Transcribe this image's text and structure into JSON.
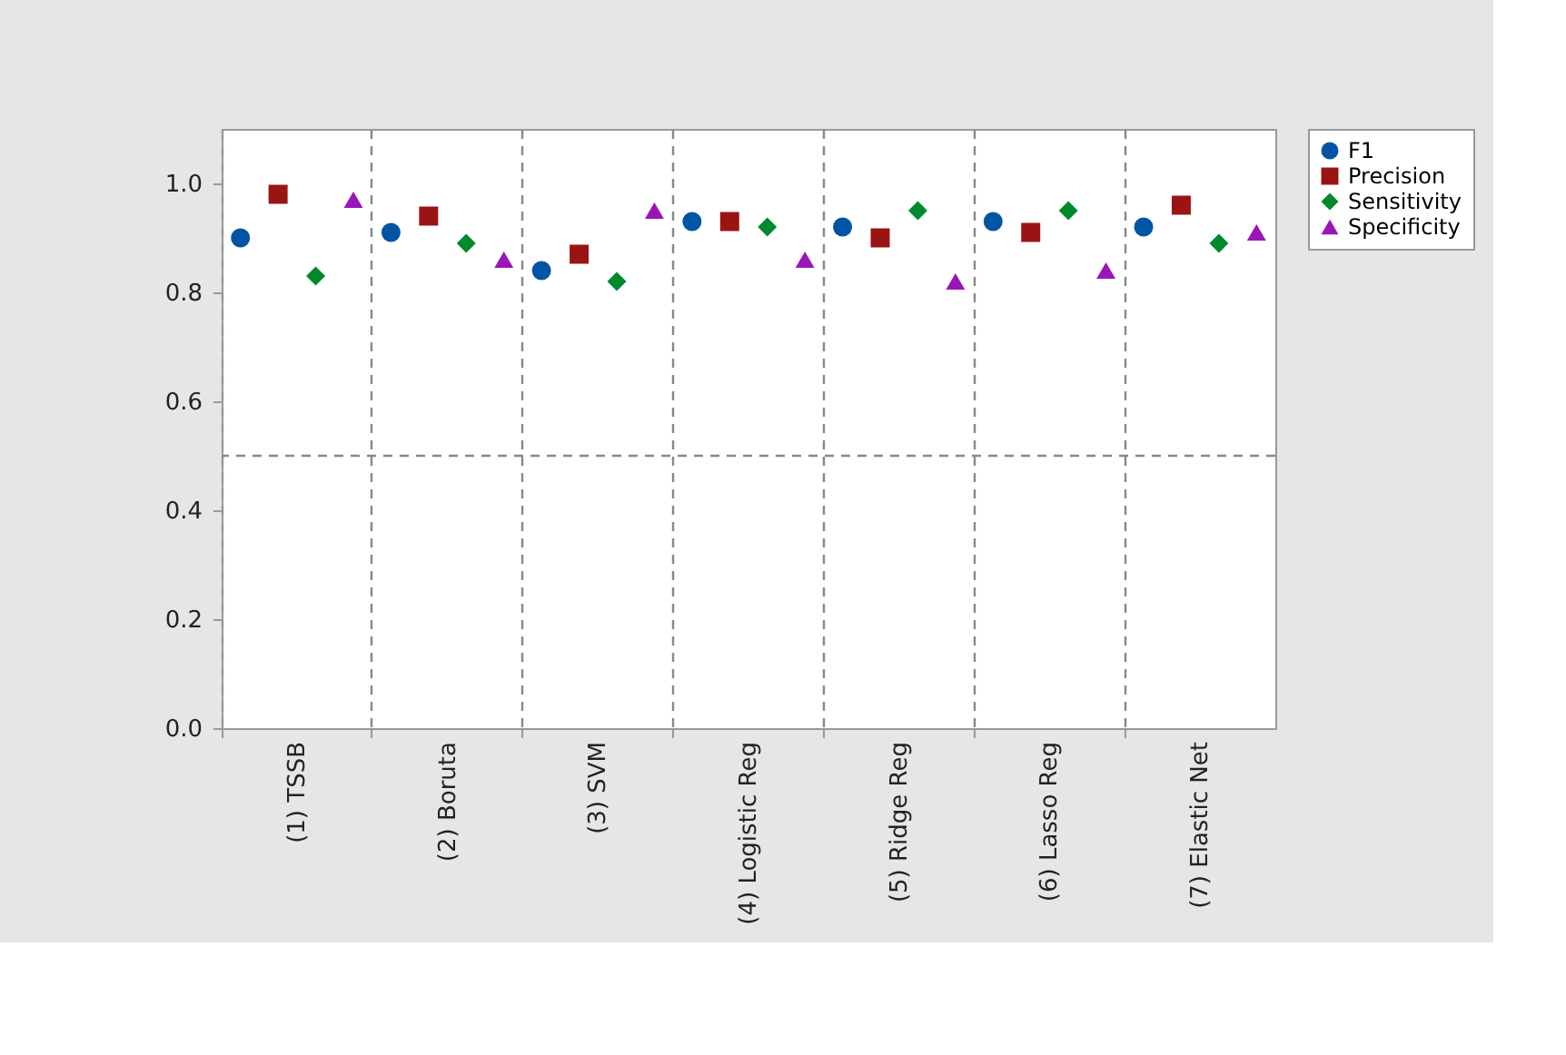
{
  "chart_data": {
    "type": "scatter",
    "categories": [
      "(1) TSSB",
      "(2) Boruta",
      "(3) SVM",
      "(4) Logistic Reg",
      "(5) Ridge Reg",
      "(6) Lasso Reg",
      "(7) Elastic Net"
    ],
    "series": [
      {
        "name": "F1",
        "color": "#0054a6",
        "marker": "circle",
        "values": [
          0.9,
          0.91,
          0.84,
          0.93,
          0.92,
          0.93,
          0.92
        ]
      },
      {
        "name": "Precision",
        "color": "#9b1414",
        "marker": "square",
        "values": [
          0.98,
          0.94,
          0.87,
          0.93,
          0.9,
          0.91,
          0.96
        ]
      },
      {
        "name": "Sensitivity",
        "color": "#008a2e",
        "marker": "diamond",
        "values": [
          0.83,
          0.89,
          0.82,
          0.92,
          0.95,
          0.95,
          0.89
        ]
      },
      {
        "name": "Specificity",
        "color": "#9a16b8",
        "marker": "triangle",
        "values": [
          0.97,
          0.86,
          0.95,
          0.86,
          0.82,
          0.84,
          0.91
        ]
      }
    ],
    "ylim": [
      0,
      1.1
    ],
    "yticks": [
      {
        "value": 0,
        "label": "0.0"
      },
      0.2,
      0.4,
      0.6,
      0.8,
      {
        "value": 1,
        "label": "1.0"
      }
    ],
    "ref_lines": [
      {
        "axis": "y",
        "value": 0.5,
        "color": "#888888",
        "line_style": "dashed"
      }
    ],
    "grid": "x",
    "legend": "top right"
  }
}
